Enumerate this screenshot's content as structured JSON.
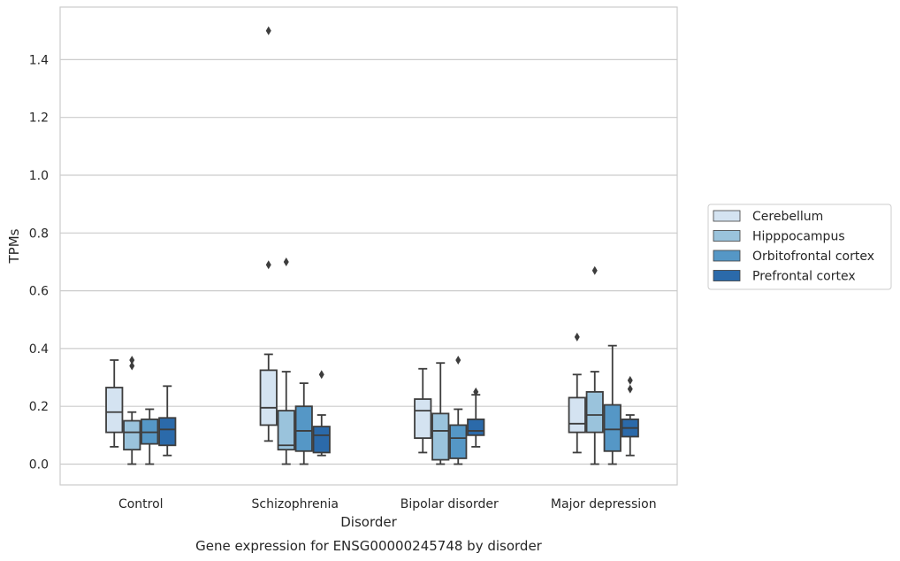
{
  "chart_data": {
    "type": "box",
    "caption": "Gene expression for ENSG00000245748 by disorder",
    "xlabel": "Disorder",
    "ylabel": "TPMs",
    "ylim": [
      -0.07,
      1.58
    ],
    "yticks": [
      0.0,
      0.2,
      0.4,
      0.6,
      0.8,
      1.0,
      1.2,
      1.4
    ],
    "ytick_labels": [
      "0.0",
      "0.2",
      "0.4",
      "0.6",
      "0.8",
      "1.0",
      "1.2",
      "1.4"
    ],
    "grid": "horizontal",
    "legend_position": "right",
    "categories": [
      "Control",
      "Schizophrenia",
      "Bipolar disorder",
      "Major depression"
    ],
    "series": [
      {
        "name": "Cerebellum",
        "color": "#d4e3f1",
        "boxes": [
          {
            "whislo": 0.06,
            "q1": 0.11,
            "med": 0.18,
            "q3": 0.265,
            "whishi": 0.36,
            "fliers": []
          },
          {
            "whislo": 0.08,
            "q1": 0.135,
            "med": 0.195,
            "q3": 0.325,
            "whishi": 0.38,
            "fliers": [
              1.5,
              0.69
            ]
          },
          {
            "whislo": 0.04,
            "q1": 0.09,
            "med": 0.185,
            "q3": 0.225,
            "whishi": 0.33,
            "fliers": []
          },
          {
            "whislo": 0.04,
            "q1": 0.11,
            "med": 0.14,
            "q3": 0.23,
            "whishi": 0.31,
            "fliers": [
              0.44
            ]
          }
        ]
      },
      {
        "name": "Hipppocampus",
        "color": "#9ac3dc",
        "boxes": [
          {
            "whislo": 0.0,
            "q1": 0.05,
            "med": 0.11,
            "q3": 0.15,
            "whishi": 0.18,
            "fliers": [
              0.36,
              0.34
            ]
          },
          {
            "whislo": 0.0,
            "q1": 0.05,
            "med": 0.065,
            "q3": 0.185,
            "whishi": 0.32,
            "fliers": [
              0.7
            ]
          },
          {
            "whislo": 0.0,
            "q1": 0.015,
            "med": 0.115,
            "q3": 0.175,
            "whishi": 0.35,
            "fliers": []
          },
          {
            "whislo": 0.0,
            "q1": 0.11,
            "med": 0.17,
            "q3": 0.25,
            "whishi": 0.32,
            "fliers": [
              0.67
            ]
          }
        ]
      },
      {
        "name": "Orbitofrontal cortex",
        "color": "#5597c6",
        "boxes": [
          {
            "whislo": 0.0,
            "q1": 0.07,
            "med": 0.11,
            "q3": 0.155,
            "whishi": 0.19,
            "fliers": []
          },
          {
            "whislo": 0.0,
            "q1": 0.045,
            "med": 0.115,
            "q3": 0.2,
            "whishi": 0.28,
            "fliers": []
          },
          {
            "whislo": 0.0,
            "q1": 0.02,
            "med": 0.09,
            "q3": 0.135,
            "whishi": 0.19,
            "fliers": [
              0.36
            ]
          },
          {
            "whislo": 0.0,
            "q1": 0.045,
            "med": 0.12,
            "q3": 0.205,
            "whishi": 0.41,
            "fliers": []
          }
        ]
      },
      {
        "name": "Prefrontal cortex",
        "color": "#2b6aaa",
        "boxes": [
          {
            "whislo": 0.03,
            "q1": 0.065,
            "med": 0.12,
            "q3": 0.16,
            "whishi": 0.27,
            "fliers": []
          },
          {
            "whislo": 0.03,
            "q1": 0.04,
            "med": 0.1,
            "q3": 0.13,
            "whishi": 0.17,
            "fliers": [
              0.31
            ]
          },
          {
            "whislo": 0.06,
            "q1": 0.1,
            "med": 0.115,
            "q3": 0.155,
            "whishi": 0.24,
            "fliers": [
              0.25
            ]
          },
          {
            "whislo": 0.03,
            "q1": 0.095,
            "med": 0.125,
            "q3": 0.155,
            "whishi": 0.17,
            "fliers": [
              0.29,
              0.26
            ]
          }
        ]
      }
    ]
  }
}
